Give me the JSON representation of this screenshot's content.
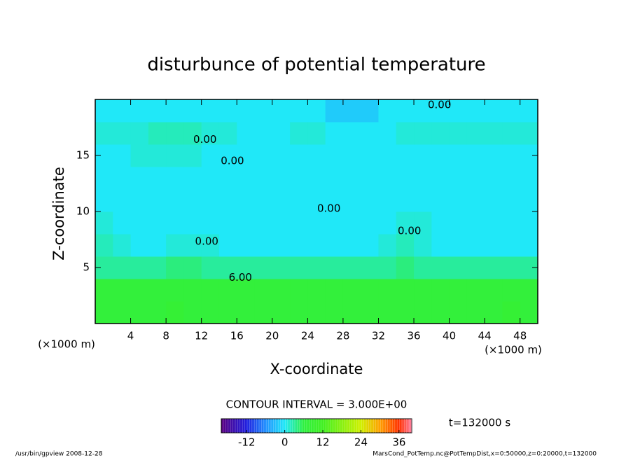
{
  "chart_data": {
    "type": "contour",
    "title": "disturbunce of potential temperature",
    "x_label": "X-coordinate",
    "y_label": "Z-coordinate",
    "x_unit": "(×1000 m)",
    "y_unit": "(×1000 m)",
    "x": [
      1,
      3,
      5,
      7,
      9,
      11,
      13,
      15,
      17,
      19,
      21,
      23,
      25,
      27,
      29,
      31,
      33,
      35,
      37,
      39,
      41,
      43,
      45,
      47,
      49
    ],
    "z": [
      1,
      3,
      5,
      7,
      9,
      11,
      13,
      15,
      17,
      19
    ],
    "values": [
      [
        7,
        7,
        7,
        7,
        8,
        7,
        7,
        7,
        7,
        7,
        7,
        7,
        7,
        7,
        7,
        7,
        7,
        7,
        7,
        7,
        7,
        7,
        7,
        8,
        7
      ],
      [
        7,
        7,
        7,
        7,
        7,
        7,
        7,
        7,
        7,
        7,
        7,
        7,
        7,
        7,
        7,
        7,
        7,
        7,
        7,
        7,
        7,
        7,
        7,
        7,
        7
      ],
      [
        3,
        3,
        3,
        3,
        4,
        4,
        3,
        3,
        3,
        3,
        3,
        3,
        3,
        3,
        3,
        3,
        3,
        4,
        3,
        3,
        3,
        3,
        3,
        3,
        3
      ],
      [
        2,
        1,
        0,
        0,
        1,
        1,
        1,
        0,
        0,
        0,
        0,
        0,
        0,
        0,
        0,
        0,
        1,
        2,
        1,
        0,
        0,
        0,
        0,
        0,
        0
      ],
      [
        1,
        0,
        0,
        0,
        0,
        0,
        0,
        0,
        0,
        0,
        0,
        0,
        0,
        0,
        0,
        0,
        0,
        1,
        1,
        0,
        0,
        0,
        0,
        0,
        0
      ],
      [
        0,
        0,
        0,
        0,
        0,
        0,
        0,
        0,
        0,
        0,
        0,
        0,
        0,
        0,
        0,
        0,
        0,
        0,
        0,
        0,
        0,
        0,
        0,
        0,
        0
      ],
      [
        0,
        0,
        0,
        0,
        0,
        0,
        0,
        0,
        0,
        0,
        0,
        0,
        0,
        0,
        0,
        0,
        0,
        0,
        0,
        0,
        0,
        0,
        0,
        0,
        0
      ],
      [
        0,
        0,
        1,
        1,
        1,
        1,
        0,
        0,
        0,
        0,
        0,
        0,
        0,
        0,
        0,
        0,
        0,
        0,
        0,
        0,
        0,
        0,
        0,
        0,
        0
      ],
      [
        1,
        1,
        1,
        2,
        2,
        2,
        1,
        1,
        0,
        0,
        0,
        1,
        1,
        0,
        0,
        0,
        0,
        1,
        1,
        1,
        1,
        1,
        1,
        1,
        1
      ],
      [
        0,
        0,
        0,
        0,
        0,
        0,
        0,
        0,
        0,
        0,
        0,
        0,
        0,
        -2,
        -2,
        -2,
        0,
        0,
        0,
        0,
        0,
        0,
        0,
        0,
        0
      ]
    ],
    "xlim": [
      0,
      50
    ],
    "ylim": [
      0,
      20
    ],
    "xticks": [
      4,
      8,
      12,
      16,
      20,
      24,
      28,
      32,
      36,
      40,
      44,
      48
    ],
    "yticks": [
      5,
      10,
      15
    ],
    "contour_labels": [
      {
        "label": "0.00",
        "x": 38.9,
        "z": 19.5
      },
      {
        "label": "0.00",
        "x": 12.4,
        "z": 16.4
      },
      {
        "label": "0.00",
        "x": 15.5,
        "z": 14.5
      },
      {
        "label": "0.00",
        "x": 26.4,
        "z": 10.25
      },
      {
        "label": "0.00",
        "x": 35.5,
        "z": 8.25
      },
      {
        "label": "0.00",
        "x": 12.6,
        "z": 7.3
      },
      {
        "label": "6.00",
        "x": 16.4,
        "z": 4.1
      }
    ],
    "contour_interval_text": "CONTOUR INTERVAL = 3.000E+00",
    "colorbar": {
      "clim": [
        -20,
        40
      ],
      "ticks": [
        -12,
        0,
        12,
        24,
        36
      ],
      "colormap": [
        "#5a0080",
        "#2020e0",
        "#2090ff",
        "#20e8f8",
        "#30f040",
        "#40f020",
        "#d0f000",
        "#ffa000",
        "#ff3000",
        "#ff80a0"
      ],
      "stops": [
        -20,
        -12,
        -6,
        0,
        6,
        12,
        24,
        30,
        36,
        40
      ]
    },
    "time_label": "t=132000 s",
    "footer_left": "/usr/bin/gpview   2008-12-28",
    "footer_right": "MarsCond_PotTemp.nc@PotTempDist,x=0:50000,z=0:20000,t=132000"
  }
}
